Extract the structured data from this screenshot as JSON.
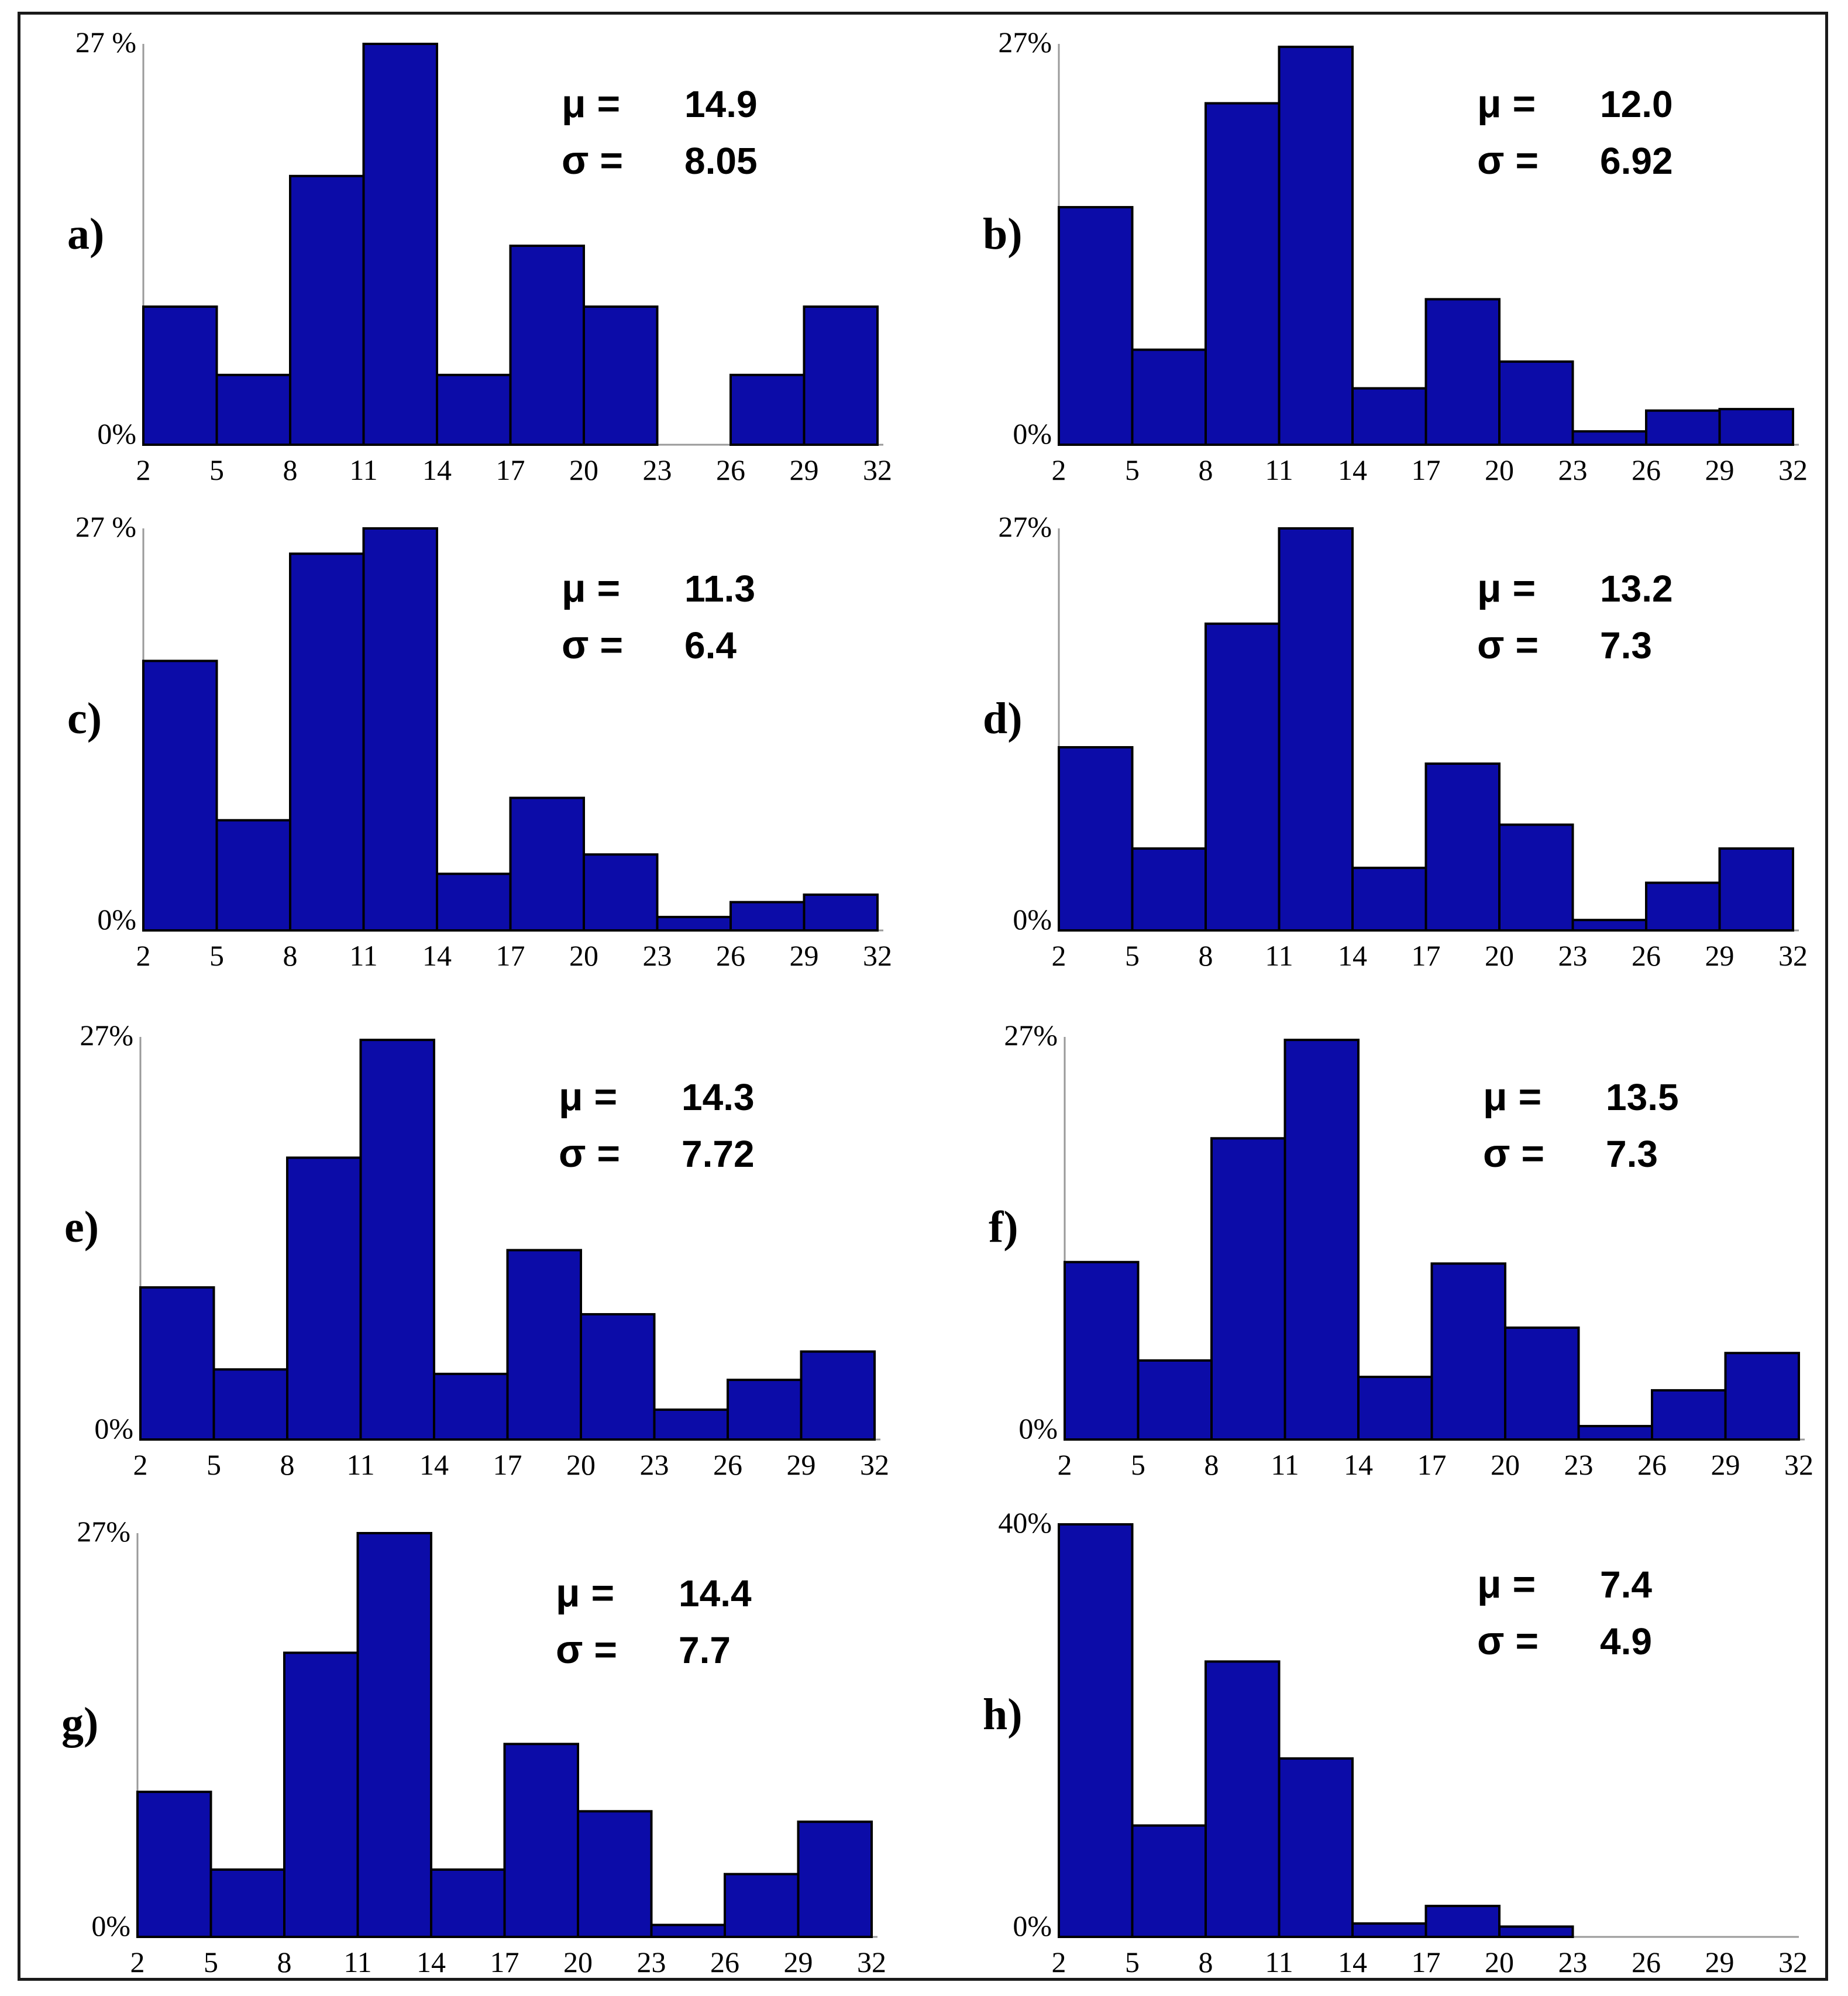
{
  "colors": {
    "bar": "#0c0ca8",
    "bar_edge": "#000000",
    "axis": "#9a9a9a",
    "frame": "#1a1a1a"
  },
  "chart_data": [
    {
      "type": "bar",
      "panel": "a)",
      "stats": {
        "mu_label": "μ =",
        "mu": "14.9",
        "sigma_label": "σ =",
        "sigma": "8.05"
      },
      "ylim": [
        0,
        27
      ],
      "y_top_label": "27 %",
      "y_bottom_label": "0%",
      "x_ticks": [
        "2",
        "5",
        "8",
        "11",
        "14",
        "17",
        "20",
        "23",
        "26",
        "29",
        "32"
      ],
      "values": [
        9.3,
        4.7,
        18.1,
        27.0,
        4.7,
        13.4,
        9.3,
        0.0,
        4.7,
        9.3
      ]
    },
    {
      "type": "bar",
      "panel": "b)",
      "stats": {
        "mu_label": "μ =",
        "mu": "12.0",
        "sigma_label": "σ =",
        "sigma": "6.92"
      },
      "ylim": [
        0,
        27
      ],
      "y_top_label": "27%",
      "y_bottom_label": "0%",
      "x_ticks": [
        "2",
        "5",
        "8",
        "11",
        "14",
        "17",
        "20",
        "23",
        "26",
        "29",
        "32"
      ],
      "values": [
        16.0,
        6.4,
        23.0,
        26.8,
        3.8,
        9.8,
        5.6,
        0.9,
        2.3,
        2.4
      ]
    },
    {
      "type": "bar",
      "panel": "c)",
      "stats": {
        "mu_label": "μ =",
        "mu": "11.3",
        "sigma_label": "σ =",
        "sigma": "6.4"
      },
      "ylim": [
        0,
        27
      ],
      "y_top_label": "27 %",
      "y_bottom_label": "0%",
      "x_ticks": [
        "2",
        "5",
        "8",
        "11",
        "14",
        "17",
        "20",
        "23",
        "26",
        "29",
        "32"
      ],
      "values": [
        18.1,
        7.4,
        25.3,
        27.0,
        3.8,
        8.9,
        5.1,
        0.9,
        1.9,
        2.4
      ]
    },
    {
      "type": "bar",
      "panel": "d)",
      "stats": {
        "mu_label": "μ =",
        "mu": "13.2",
        "sigma_label": "σ =",
        "sigma": "7.3"
      },
      "ylim": [
        0,
        27
      ],
      "y_top_label": "27%",
      "y_bottom_label": "0%",
      "x_ticks": [
        "2",
        "5",
        "8",
        "11",
        "14",
        "17",
        "20",
        "23",
        "26",
        "29",
        "32"
      ],
      "values": [
        12.3,
        5.5,
        20.6,
        27.0,
        4.2,
        11.2,
        7.1,
        0.7,
        3.2,
        5.5
      ]
    },
    {
      "type": "bar",
      "panel": "e)",
      "stats": {
        "mu_label": "μ =",
        "mu": "14.3",
        "sigma_label": "σ =",
        "sigma": "7.72"
      },
      "ylim": [
        0,
        27
      ],
      "y_top_label": "27%",
      "y_bottom_label": "0%",
      "x_ticks": [
        "2",
        "5",
        "8",
        "11",
        "14",
        "17",
        "20",
        "23",
        "26",
        "29",
        "32"
      ],
      "values": [
        10.2,
        4.7,
        18.9,
        26.8,
        4.4,
        12.7,
        8.4,
        2.0,
        4.0,
        5.9
      ]
    },
    {
      "type": "bar",
      "panel": "f)",
      "stats": {
        "mu_label": "μ =",
        "mu": "13.5",
        "sigma_label": "σ =",
        "sigma": "7.3"
      },
      "ylim": [
        0,
        27
      ],
      "y_top_label": "27%",
      "y_bottom_label": "0%",
      "x_ticks": [
        "2",
        "5",
        "8",
        "11",
        "14",
        "17",
        "20",
        "23",
        "26",
        "29",
        "32"
      ],
      "values": [
        11.9,
        5.3,
        20.2,
        26.8,
        4.2,
        11.8,
        7.5,
        0.9,
        3.3,
        5.8
      ]
    },
    {
      "type": "bar",
      "panel": "g)",
      "stats": {
        "mu_label": "μ =",
        "mu": "14.4",
        "sigma_label": "σ =",
        "sigma": "7.7"
      },
      "ylim": [
        0,
        27
      ],
      "y_top_label": "27%",
      "y_bottom_label": "0%",
      "x_ticks": [
        "2",
        "5",
        "8",
        "11",
        "14",
        "17",
        "20",
        "23",
        "26",
        "29",
        "32"
      ],
      "values": [
        9.7,
        4.5,
        19.0,
        27.0,
        4.5,
        12.9,
        8.4,
        0.8,
        4.2,
        7.7
      ]
    },
    {
      "type": "bar",
      "panel": "h)",
      "stats": {
        "mu_label": "μ =",
        "mu": "7.4",
        "sigma_label": "σ =",
        "sigma": "4.9"
      },
      "ylim": [
        0,
        40
      ],
      "y_top_label": "40%",
      "y_bottom_label": "0%",
      "x_ticks": [
        "2",
        "5",
        "8",
        "11",
        "14",
        "17",
        "20",
        "23",
        "26",
        "29",
        "32"
      ],
      "values": [
        40.0,
        10.8,
        26.7,
        17.3,
        1.3,
        3.0,
        1.0,
        0.0,
        0.0,
        0.0
      ]
    }
  ]
}
